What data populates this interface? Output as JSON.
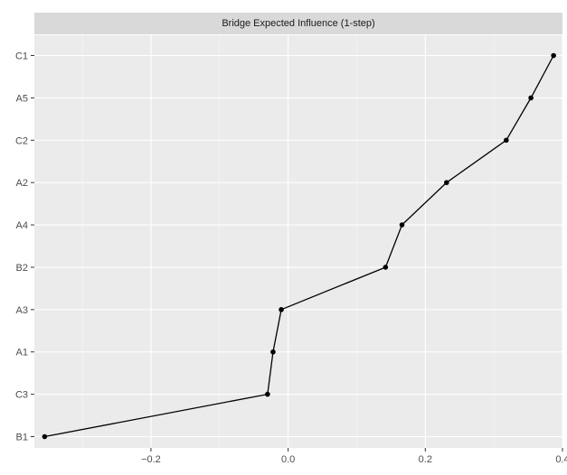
{
  "chart_data": {
    "type": "line",
    "title": "Bridge Expected Influence (1-step)",
    "xlabel": "",
    "ylabel": "",
    "categories": [
      "B1",
      "C3",
      "A1",
      "A3",
      "B2",
      "A4",
      "A2",
      "C2",
      "A5",
      "C1"
    ],
    "values": [
      -0.355,
      -0.03,
      -0.022,
      -0.01,
      0.142,
      0.166,
      0.231,
      0.318,
      0.354,
      0.387
    ],
    "x_ticks": [
      -0.2,
      0.0,
      0.2,
      0.4
    ],
    "x_tick_labels": [
      "−0.2",
      "0.0",
      "0.2",
      "0.4"
    ],
    "xlim": [
      -0.37,
      0.4
    ],
    "grid": true,
    "colors": {
      "panel_bg": "#ebebeb",
      "strip_bg": "#d9d9d9",
      "grid_major": "#ffffff",
      "line": "#000000"
    }
  }
}
